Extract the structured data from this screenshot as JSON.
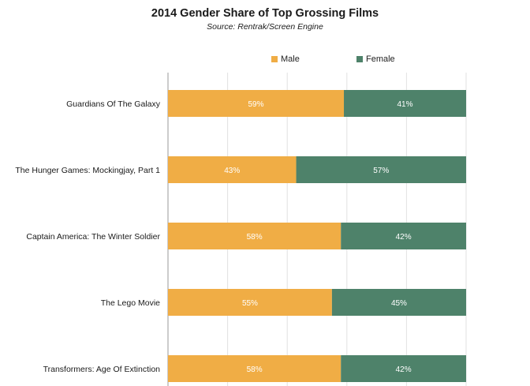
{
  "chart_data": {
    "type": "bar",
    "orientation": "horizontal",
    "stacked": true,
    "title": "2014 Gender Share of Top Grossing Films",
    "subtitle": "Source: Rentrak/Screen Engine",
    "categories": [
      "Guardians Of The Galaxy",
      "The Hunger Games: Mockingjay, Part 1",
      "Captain America: The Winter Soldier",
      "The Lego Movie",
      "Transformers: Age Of Extinction"
    ],
    "series": [
      {
        "name": "Male",
        "color": "#f0ad45",
        "values": [
          59,
          43,
          58,
          55,
          58
        ]
      },
      {
        "name": "Female",
        "color": "#4e826a",
        "values": [
          41,
          57,
          42,
          45,
          42
        ]
      }
    ],
    "value_suffix": "%",
    "xlim": [
      0,
      100
    ],
    "grid": true,
    "legend_position": "top"
  }
}
